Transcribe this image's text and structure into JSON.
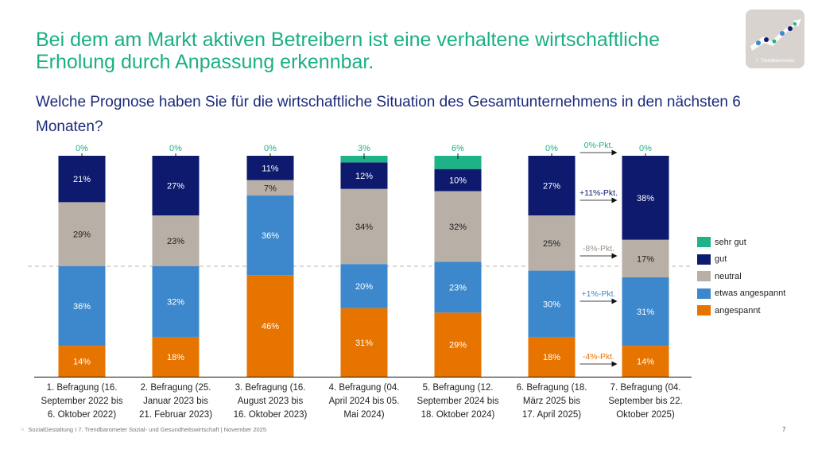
{
  "headline": "Bei dem am Markt aktiven Betreibern ist eine verhaltene wirtschaftliche Erholung durch Anpassung erkennbar.",
  "question": "Welche Prognose haben Sie für die wirtschaftliche Situation des Gesamtunternehmens in den nächsten 6 Monaten?",
  "badge": {
    "icon": "trendbarometer-logo-icon",
    "label": "7. Trendbarometer"
  },
  "footer": {
    "logo_text": "SozialGestaltung",
    "text": "I 7. Trendbarometer Sozial- und Gesundheitswirtschaft | November 2025",
    "page_number": "7"
  },
  "colors": {
    "sehr_gut": "#1db386",
    "gut": "#0d1a6e",
    "neutral": "#b8afa7",
    "etwas_angespannt": "#3d88cc",
    "angespannt": "#e87400"
  },
  "chart_data": {
    "type": "bar",
    "stacked": true,
    "title": "Welche Prognose haben Sie für die wirtschaftliche Situation des Gesamtunternehmens in den nächsten 6 Monaten?",
    "xlabel": "",
    "ylabel": "",
    "ylim": [
      0,
      100
    ],
    "unit": "%",
    "legend_position": "right",
    "reference_line": {
      "value": 50,
      "style": "dashed"
    },
    "categories": [
      "1. Befragung (16. September 2022 bis 6. Oktober 2022)",
      "2. Befragung (25. Januar 2023 bis 21. Februar 2023)",
      "3. Befragung (16. August 2023 bis 16. Oktober 2023)",
      "4. Befragung (04. April 2024 bis 05. Mai 2024)",
      "5. Befragung (12. September 2024 bis 18. Oktober 2024)",
      "6. Befragung (18. März 2025 bis 17. April 2025)",
      "7. Befragung (04. September bis 22. Oktober 2025)"
    ],
    "category_lines": [
      [
        "1. Befragung (16.",
        "September 2022 bis",
        "6. Oktober 2022)"
      ],
      [
        "2. Befragung (25.",
        "Januar 2023 bis",
        "21. Februar 2023)"
      ],
      [
        "3. Befragung (16.",
        "August 2023 bis",
        "16. Oktober 2023)"
      ],
      [
        "4. Befragung (04.",
        "April 2024 bis 05.",
        "Mai 2024)"
      ],
      [
        "5. Befragung (12.",
        "September 2024 bis",
        "18. Oktober 2024)"
      ],
      [
        "6. Befragung (18.",
        "März 2025 bis",
        "17. April 2025)"
      ],
      [
        "7. Befragung (04.",
        "September bis 22.",
        "Oktober 2025)"
      ]
    ],
    "series": [
      {
        "key": "angespannt",
        "name": "angespannt",
        "values": [
          14,
          18,
          46,
          31,
          29,
          18,
          14
        ]
      },
      {
        "key": "etwas_angespannt",
        "name": "etwas angespannt",
        "values": [
          36,
          32,
          36,
          20,
          23,
          30,
          31
        ]
      },
      {
        "key": "neutral",
        "name": "neutral",
        "values": [
          29,
          23,
          7,
          34,
          32,
          25,
          17
        ]
      },
      {
        "key": "gut",
        "name": "gut",
        "values": [
          21,
          27,
          11,
          12,
          10,
          27,
          38
        ]
      },
      {
        "key": "sehr_gut",
        "name": "sehr gut",
        "values": [
          0,
          0,
          0,
          3,
          6,
          0,
          0
        ]
      }
    ],
    "legend": [
      "sehr gut",
      "gut",
      "neutral",
      "etwas angespannt",
      "angespannt"
    ],
    "change_annotations": [
      {
        "series": "sehr_gut",
        "label": "0%-Pkt."
      },
      {
        "series": "gut",
        "label": "+11%-Pkt."
      },
      {
        "series": "neutral",
        "label": "-8%-Pkt."
      },
      {
        "series": "etwas_angespannt",
        "label": "+1%-Pkt."
      },
      {
        "series": "angespannt",
        "label": "-4%-Pkt."
      }
    ]
  }
}
